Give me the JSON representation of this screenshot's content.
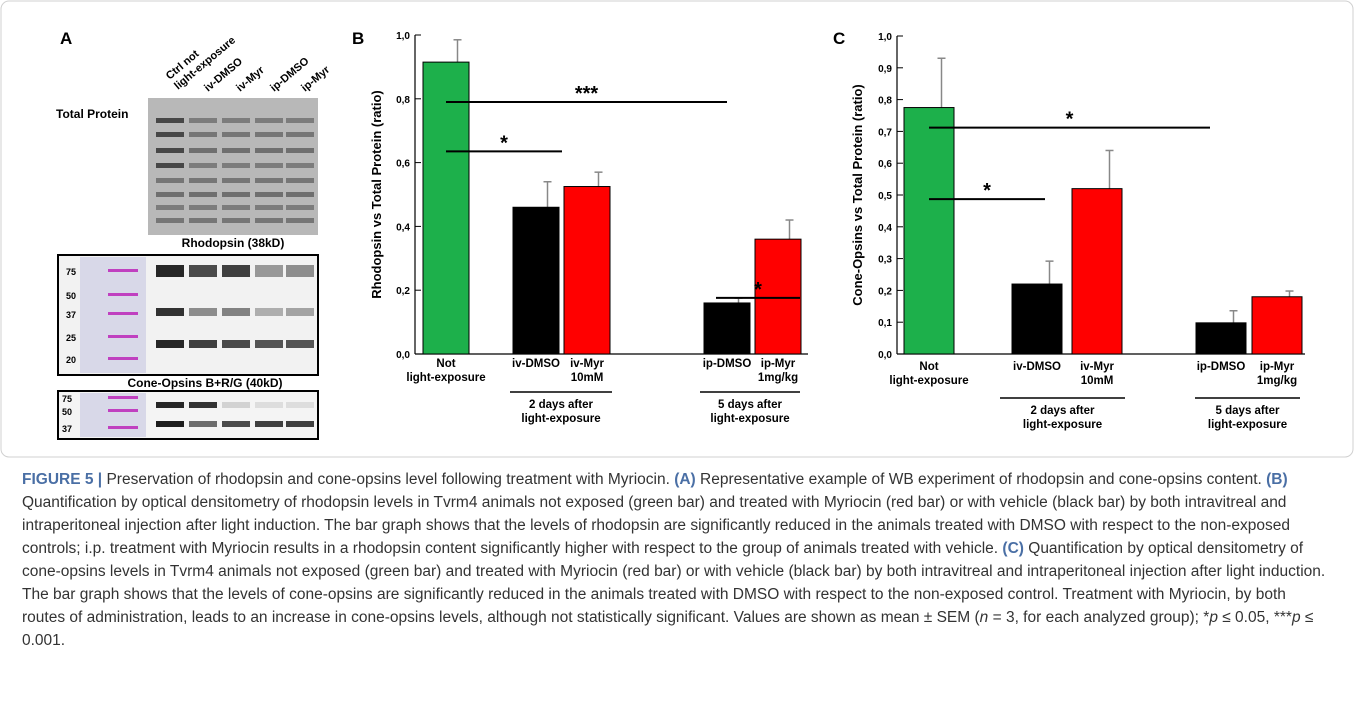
{
  "panel_a": {
    "label": "A",
    "lanes": [
      "Ctrl not\nlight-exposure",
      "iv-DMSO",
      "iv-Myr",
      "ip-DMSO",
      "ip-Myr"
    ],
    "total_protein": "Total Protein",
    "rhodopsin": "Rhodopsin  (38kD)",
    "rhodopsin_ladder": [
      "75",
      "50",
      "37",
      "25",
      "20"
    ],
    "cone_opsins": "Cone-Opsins  B+R/G (40kD)",
    "cone_ladder": [
      "75",
      "50",
      "37"
    ]
  },
  "chart_data": [
    {
      "type": "bar",
      "panel_label": "B",
      "y_label": "Rhodopsin vs Total Protein (ratio)",
      "categories": [
        "Not\nlight-exposure",
        "iv-DMSO",
        "iv-Myr\n10mM",
        "ip-DMSO",
        "ip-Myr\n1mg/kg"
      ],
      "values": [
        0.915,
        0.46,
        0.525,
        0.16,
        0.36
      ],
      "errors": [
        0.07,
        0.08,
        0.045,
        0.015,
        0.06
      ],
      "colors": [
        "#1db04b",
        "#000000",
        "#ff0000",
        "#000000",
        "#ff0000"
      ],
      "ylim": [
        0,
        1.0
      ],
      "yticks": [
        {
          "value": 0,
          "label": "0,0"
        },
        {
          "value": 0.2,
          "label": "0,2"
        },
        {
          "value": 0.4,
          "label": "0,4"
        },
        {
          "value": 0.6,
          "label": "0,6"
        },
        {
          "value": 0.8,
          "label": "0,8"
        },
        {
          "value": 1.0,
          "label": "1,0"
        }
      ],
      "groups": [
        {
          "label": "2 days after\nlight-exposure"
        },
        {
          "label": "5 days after\nlight-exposure"
        }
      ],
      "annotations": [
        "***",
        "*",
        "*"
      ]
    },
    {
      "type": "bar",
      "panel_label": "C",
      "y_label": "Cone-Opsins vs Total Protein (ratio)",
      "categories": [
        "Not\nlight-exposure",
        "iv-DMSO",
        "iv-Myr\n10mM",
        "ip-DMSO",
        "ip-Myr\n1mg/kg"
      ],
      "values": [
        0.775,
        0.22,
        0.52,
        0.098,
        0.18
      ],
      "errors": [
        0.155,
        0.072,
        0.12,
        0.038,
        0.018
      ],
      "colors": [
        "#1db04b",
        "#000000",
        "#ff0000",
        "#000000",
        "#ff0000"
      ],
      "ylim": [
        0,
        1.0
      ],
      "yticks": [
        {
          "value": 0,
          "label": "0,0"
        },
        {
          "value": 0.1,
          "label": "0,1"
        },
        {
          "value": 0.2,
          "label": "0,2"
        },
        {
          "value": 0.3,
          "label": "0,3"
        },
        {
          "value": 0.4,
          "label": "0,4"
        },
        {
          "value": 0.5,
          "label": "0,5"
        },
        {
          "value": 0.6,
          "label": "0,6"
        },
        {
          "value": 0.7,
          "label": "0,7"
        },
        {
          "value": 0.8,
          "label": "0,8"
        },
        {
          "value": 0.9,
          "label": "0,9"
        },
        {
          "value": 1.0,
          "label": "1,0"
        }
      ],
      "groups": [
        {
          "label": "2 days after\nlight-exposure"
        },
        {
          "label": "5 days after\nlight-exposure"
        }
      ],
      "annotations": [
        "*",
        "*"
      ]
    }
  ],
  "caption": {
    "segments": [
      "FIGURE 5 |",
      " Preservation of rhodopsin and cone-opsins level following treatment with Myriocin. ",
      "(A)",
      " Representative example of WB experiment of rhodopsin and cone-opsins content. ",
      "(B)",
      " Quantification by optical densitometry of rhodopsin levels in Tvrm4 animals not exposed (green bar) and treated with Myriocin (red bar) or with vehicle (black bar) by both intravitreal and intraperitoneal injection after light induction. The bar graph shows that the levels of rhodopsin are significantly reduced in the animals treated with DMSO with respect to the non-exposed controls; i.p. treatment with Myriocin results in a rhodopsin content significantly higher with respect to the group of animals treated with vehicle. ",
      "(C)",
      " Quantification by optical densitometry of cone-opsins levels in Tvrm4 animals not exposed (green bar) and treated with Myriocin (red bar) or with vehicle (black bar) by both intravitreal and intraperitoneal injection after light induction. The bar graph shows that the levels of cone-opsins are significantly reduced in the animals treated with DMSO with respect to the non-exposed control. Treatment with Myriocin, by both routes of administration, leads to an increase in cone-opsins levels, although not statistically significant. Values are shown as mean ± SEM (",
      "n",
      " = 3, for each analyzed group); ",
      "*",
      "p",
      " ≤ 0.05, ***",
      "p",
      " ≤ 0.001."
    ]
  }
}
